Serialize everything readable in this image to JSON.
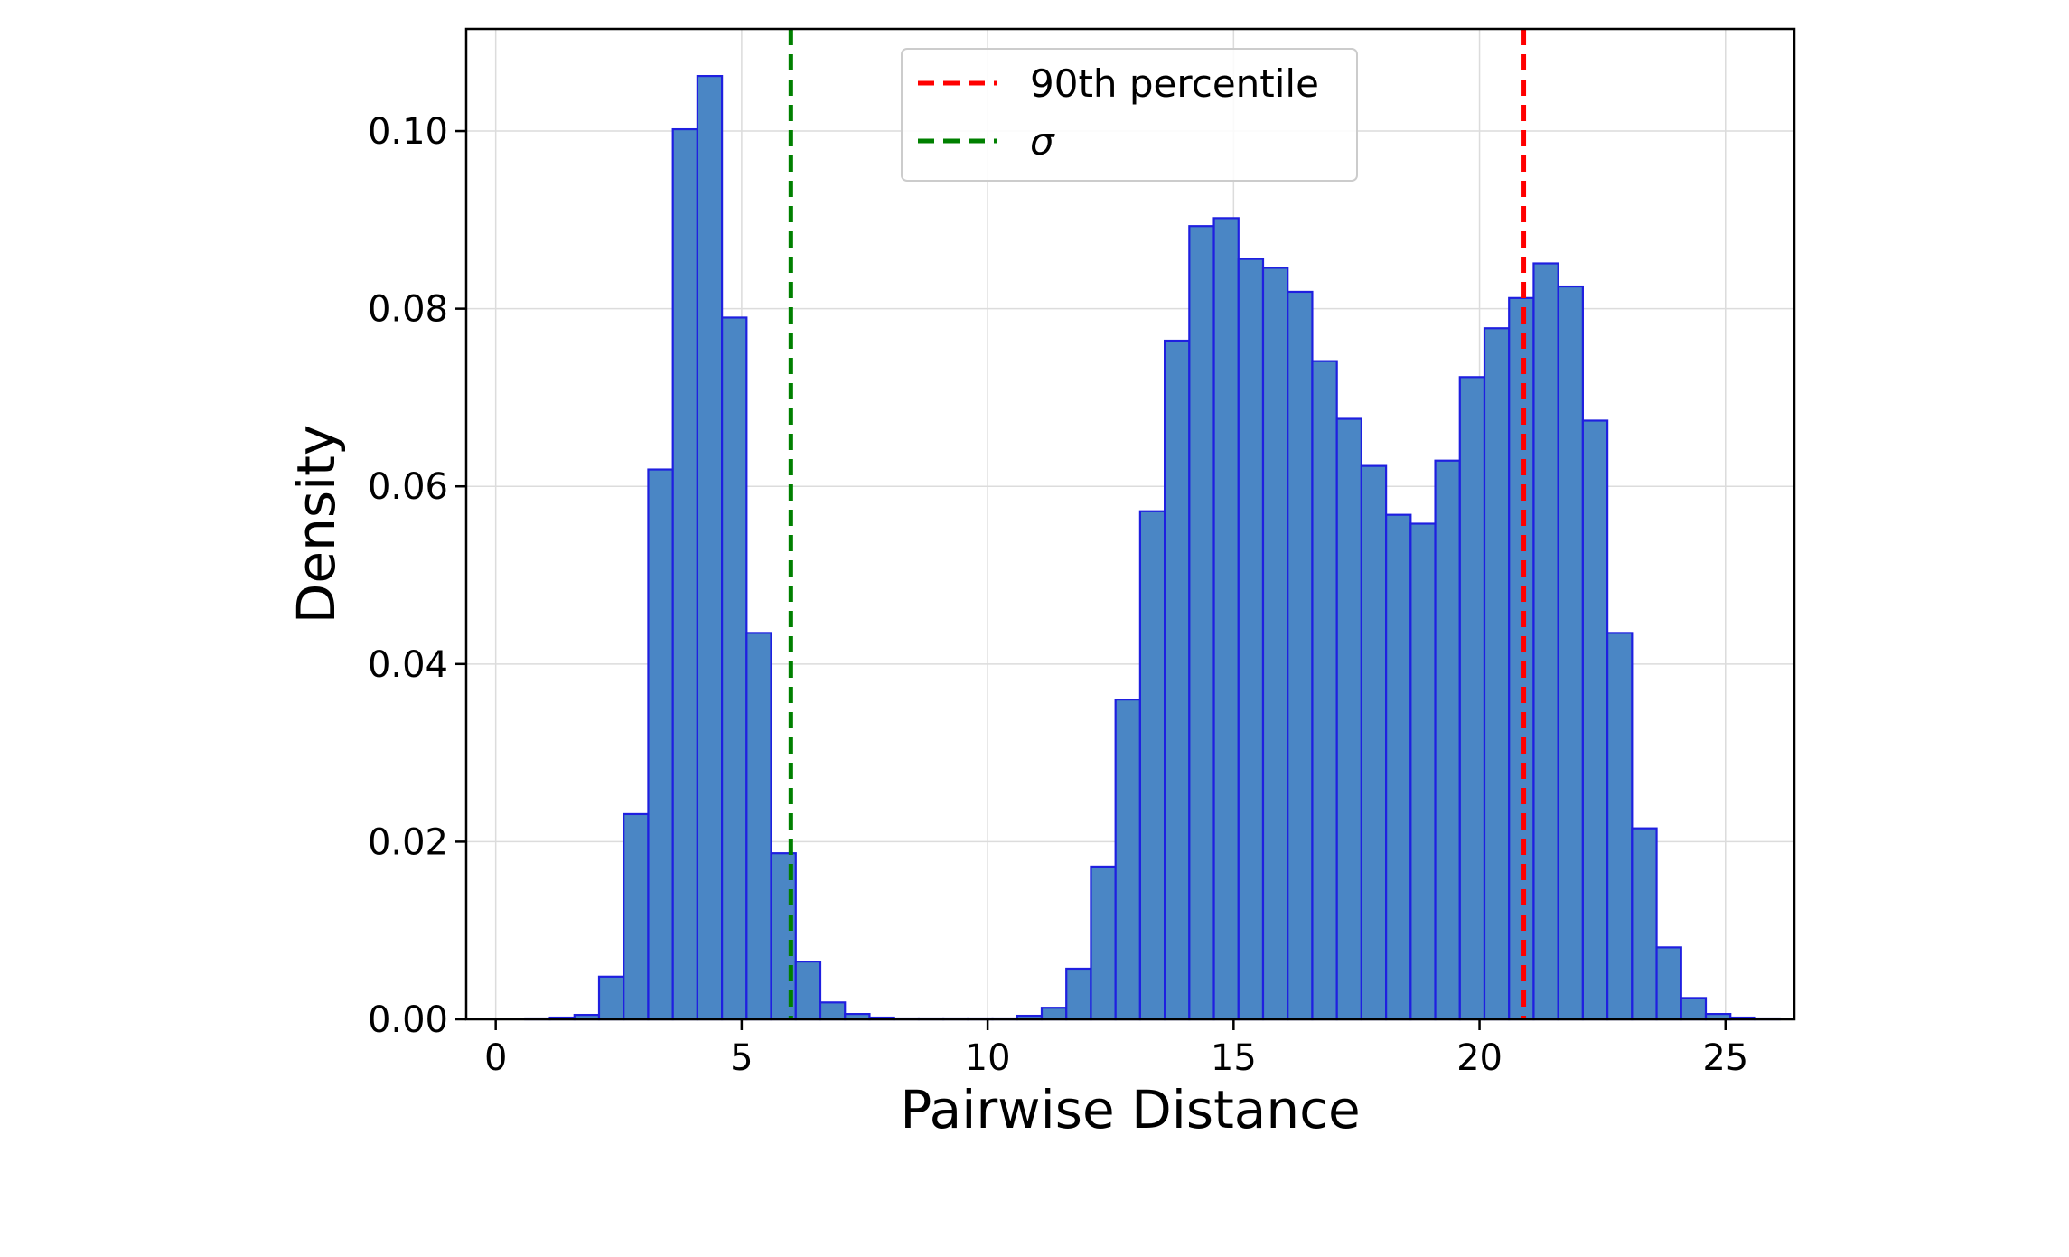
{
  "chart_data": {
    "type": "bar",
    "title": "",
    "xlabel": "Pairwise Distance",
    "ylabel": "Density",
    "xlim": [
      -0.6,
      26.4
    ],
    "ylim": [
      0,
      0.1115
    ],
    "xticks": [
      0,
      5,
      10,
      15,
      20,
      25
    ],
    "xtick_labels": [
      "0",
      "5",
      "10",
      "15",
      "20",
      "25"
    ],
    "yticks": [
      0,
      0.02,
      0.04,
      0.06,
      0.08,
      0.1
    ],
    "ytick_labels": [
      "0.00",
      "0.02",
      "0.04",
      "0.06",
      "0.08",
      "0.10"
    ],
    "grid": true,
    "legend_position": "upper center",
    "bin_start": 0.6,
    "bin_width": 0.5,
    "bar_fill": "#4a86c5",
    "bar_edge": "#1f1fe0",
    "values": [
      0.0001,
      0.0002,
      0.0005,
      0.0048,
      0.0231,
      0.0619,
      0.1002,
      0.1062,
      0.079,
      0.0435,
      0.0187,
      0.0065,
      0.0019,
      0.0006,
      0.0002,
      0.0001,
      0.0001,
      0.0001,
      0.0001,
      0.0001,
      0.0004,
      0.0013,
      0.0057,
      0.0172,
      0.036,
      0.0572,
      0.0764,
      0.0893,
      0.0902,
      0.0856,
      0.0846,
      0.0819,
      0.0741,
      0.0676,
      0.0623,
      0.0568,
      0.0558,
      0.0629,
      0.0723,
      0.0778,
      0.0812,
      0.0851,
      0.0825,
      0.0674,
      0.0435,
      0.0215,
      0.0081,
      0.0024,
      0.0006,
      0.0002,
      0.0001
    ],
    "vlines": [
      {
        "name": "90th percentile",
        "x": 20.9,
        "color": "#ff0000"
      },
      {
        "name": "σ",
        "x": 6.0,
        "color": "#008000"
      }
    ]
  }
}
